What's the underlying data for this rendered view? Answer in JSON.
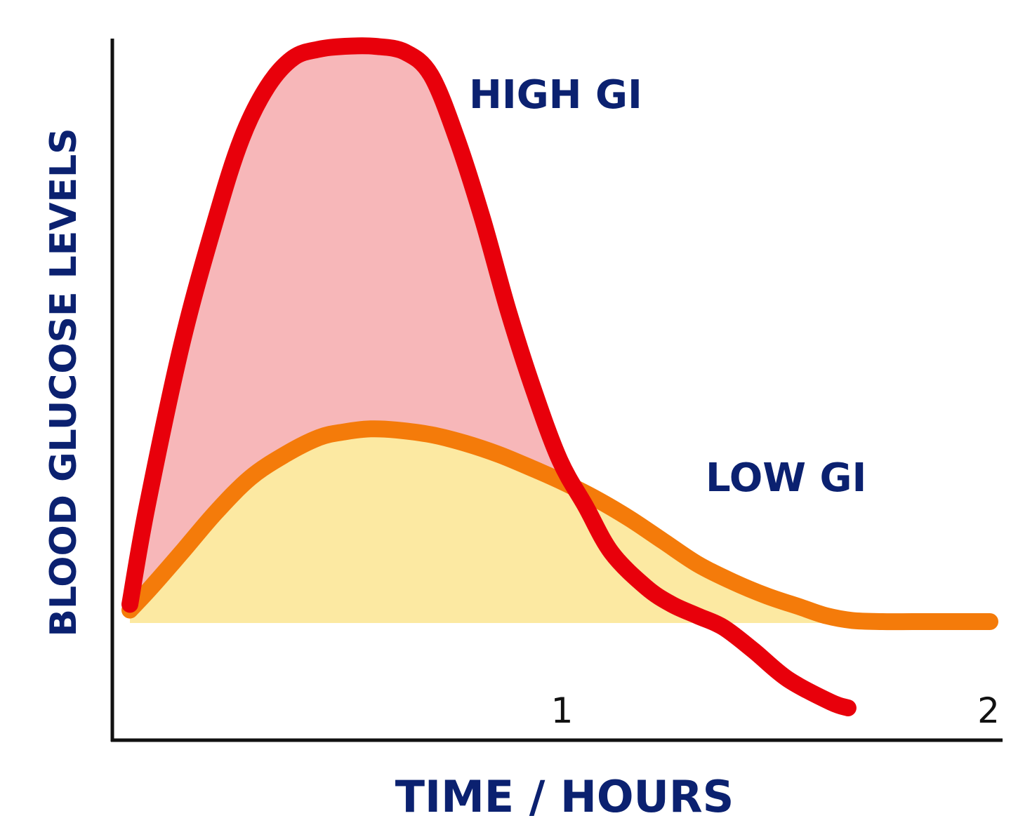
{
  "chart_data": {
    "type": "area",
    "xlabel": "TIME / HOURS",
    "ylabel": "BLOOD GLUCOSE LEVELS",
    "x_ticks": [
      "1",
      "2"
    ],
    "xlim": [
      0,
      2
    ],
    "ylim": [
      -0.2,
      1.0
    ],
    "baseline": 0,
    "grid": false,
    "series": [
      {
        "name": "HIGH GI",
        "color": "#e8000b",
        "fill": "#f7b7b9",
        "x": [
          0,
          0.04,
          0.12,
          0.2,
          0.26,
          0.32,
          0.38,
          0.44,
          0.5,
          0.57,
          0.64,
          0.7,
          0.76,
          0.82,
          0.88,
          0.94,
          1.0,
          1.06,
          1.12,
          1.2,
          1.26,
          1.32,
          1.38,
          1.45,
          1.53,
          1.63,
          1.67
        ],
        "y": [
          0.03,
          0.2,
          0.48,
          0.7,
          0.84,
          0.93,
          0.98,
          0.995,
          1.0,
          1.0,
          0.99,
          0.95,
          0.84,
          0.7,
          0.54,
          0.4,
          0.28,
          0.2,
          0.12,
          0.06,
          0.03,
          0.01,
          -0.01,
          -0.05,
          -0.1,
          -0.14,
          -0.15
        ]
      },
      {
        "name": "LOW GI",
        "color": "#f47b0a",
        "fill": "#fce9a2",
        "x": [
          0,
          0.05,
          0.12,
          0.2,
          0.28,
          0.36,
          0.44,
          0.5,
          0.56,
          0.62,
          0.7,
          0.78,
          0.86,
          0.94,
          1.0,
          1.08,
          1.16,
          1.24,
          1.32,
          1.4,
          1.48,
          1.56,
          1.62,
          1.68,
          1.75,
          1.82,
          1.9,
          2.0
        ],
        "y": [
          0.02,
          0.06,
          0.12,
          0.19,
          0.25,
          0.29,
          0.32,
          0.33,
          0.335,
          0.333,
          0.325,
          0.31,
          0.29,
          0.265,
          0.245,
          0.215,
          0.18,
          0.14,
          0.1,
          0.07,
          0.045,
          0.025,
          0.01,
          0.002,
          0.0,
          0.0,
          0.0,
          0.0
        ]
      }
    ]
  }
}
